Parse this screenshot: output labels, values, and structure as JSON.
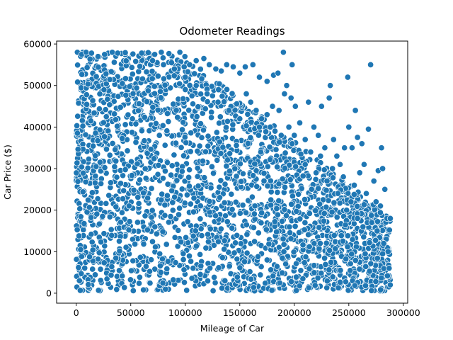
{
  "chart_data": {
    "type": "scatter",
    "title": "Odometer Readings",
    "xlabel": "Mileage of Car",
    "ylabel": "Car Price ($)",
    "xlim": [
      -18000,
      304000
    ],
    "ylim": [
      -2400,
      60700
    ],
    "x_ticks": [
      0,
      50000,
      100000,
      150000,
      200000,
      250000,
      300000
    ],
    "x_tick_labels": [
      "0",
      "50000",
      "100000",
      "150000",
      "200000",
      "250000",
      "300000"
    ],
    "y_ticks": [
      0,
      10000,
      20000,
      30000,
      40000,
      50000,
      60000
    ],
    "y_tick_labels": [
      "0",
      "10000",
      "20000",
      "30000",
      "40000",
      "50000",
      "60000"
    ],
    "grid": false,
    "legend": "none",
    "marker_color": "#1f77b4",
    "marker_edge_color": "#ffffff",
    "series": [
      {
        "points": [
          [
            1000,
            58000
          ],
          [
            5000,
            57500
          ],
          [
            9000,
            58000
          ],
          [
            14000,
            57800
          ],
          [
            20000,
            57000
          ],
          [
            26000,
            57500
          ],
          [
            33000,
            58000
          ],
          [
            38000,
            57800
          ],
          [
            45000,
            57900
          ],
          [
            52000,
            57600
          ],
          [
            60000,
            57800
          ],
          [
            66000,
            57900
          ],
          [
            72000,
            57500
          ],
          [
            78000,
            58000
          ],
          [
            85000,
            57700
          ],
          [
            95000,
            58000
          ],
          [
            99000,
            54500
          ],
          [
            104000,
            55000
          ],
          [
            110000,
            56000
          ],
          [
            117000,
            56500
          ],
          [
            122000,
            55000
          ],
          [
            128000,
            54000
          ],
          [
            133000,
            53500
          ],
          [
            138000,
            55000
          ],
          [
            144000,
            54500
          ],
          [
            150000,
            53000
          ],
          [
            155000,
            54500
          ],
          [
            162000,
            55000
          ],
          [
            168000,
            52000
          ],
          [
            175000,
            51000
          ],
          [
            181000,
            52500
          ],
          [
            185000,
            53000
          ],
          [
            190000,
            58000
          ],
          [
            193000,
            50000
          ],
          [
            198000,
            55000
          ],
          [
            191000,
            48000
          ],
          [
            197000,
            47000
          ],
          [
            201000,
            45000
          ],
          [
            186000,
            44000
          ],
          [
            180000,
            45000
          ],
          [
            175000,
            43000
          ],
          [
            170000,
            42000
          ],
          [
            165000,
            44000
          ],
          [
            160000,
            46000
          ],
          [
            156000,
            48000
          ],
          [
            195000,
            40000
          ],
          [
            200000,
            38000
          ],
          [
            205000,
            41000
          ],
          [
            210000,
            37000
          ],
          [
            213000,
            46000
          ],
          [
            218000,
            40000
          ],
          [
            222000,
            38000
          ],
          [
            225000,
            45000
          ],
          [
            228000,
            35000
          ],
          [
            232000,
            47000
          ],
          [
            233000,
            50000
          ],
          [
            236000,
            37000
          ],
          [
            239000,
            33000
          ],
          [
            242000,
            31000
          ],
          [
            246000,
            35000
          ],
          [
            249000,
            52000
          ],
          [
            250000,
            40000
          ],
          [
            253000,
            35000
          ],
          [
            256000,
            44000
          ],
          [
            258000,
            37500
          ],
          [
            260000,
            29000
          ],
          [
            262000,
            36000
          ],
          [
            264000,
            31000
          ],
          [
            268000,
            39500
          ],
          [
            270000,
            55000
          ],
          [
            273000,
            27000
          ],
          [
            275000,
            22000
          ],
          [
            277000,
            29500
          ],
          [
            280000,
            35000
          ],
          [
            281000,
            30000
          ],
          [
            283000,
            25000
          ],
          [
            285000,
            18000
          ],
          [
            288000,
            18000
          ],
          [
            279000,
            21000
          ],
          [
            266000,
            24000
          ],
          [
            255000,
            26000
          ],
          [
            245000,
            28000
          ],
          [
            235000,
            30000
          ],
          [
            224000,
            33000
          ],
          [
            215000,
            34000
          ],
          [
            248000,
            20000
          ],
          [
            252000,
            22000
          ],
          [
            258000,
            18000
          ],
          [
            263000,
            16000
          ],
          [
            271000,
            17000
          ],
          [
            276000,
            15000
          ],
          [
            282000,
            12000
          ],
          [
            286000,
            10000
          ],
          [
            287000,
            6000
          ],
          [
            288000,
            2000
          ],
          [
            240000,
            24000
          ],
          [
            230000,
            27000
          ],
          [
            220000,
            29000
          ],
          [
            210000,
            31000
          ],
          [
            206000,
            33500
          ],
          [
            198000,
            36000
          ],
          [
            188000,
            38000
          ],
          [
            178000,
            40000
          ],
          [
            168000,
            40000
          ],
          [
            150000,
            42000
          ],
          [
            140000,
            44000
          ],
          [
            130000,
            46000
          ],
          [
            120000,
            48000
          ],
          [
            110000,
            50000
          ],
          [
            100000,
            52000
          ],
          [
            90000,
            54000
          ],
          [
            80000,
            55000
          ],
          [
            70000,
            56000
          ]
        ]
      }
    ]
  }
}
